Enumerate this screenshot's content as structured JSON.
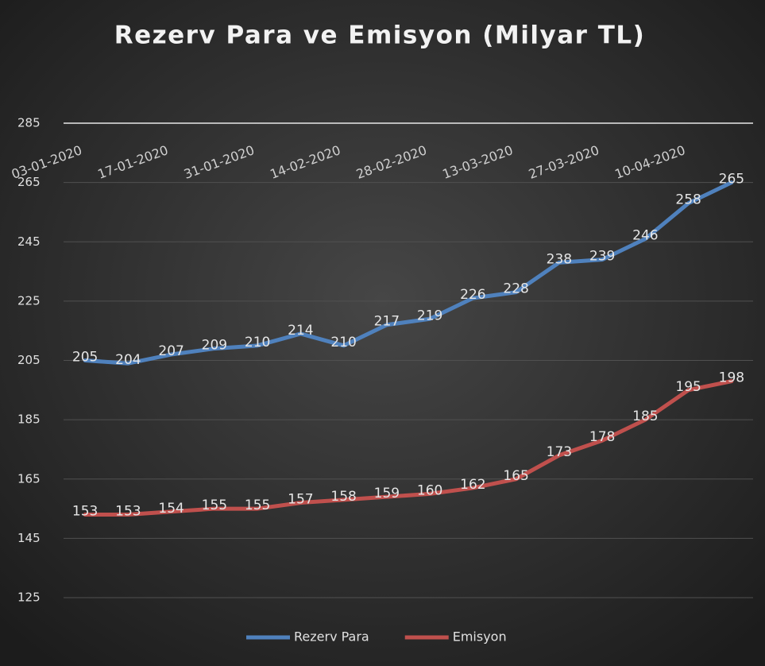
{
  "chart_data": {
    "type": "line",
    "title": "Rezerv Para  ve Emisyon  (Milyar TL)",
    "categories": [
      "03-01-2020",
      null,
      "17-01-2020",
      null,
      "31-01-2020",
      null,
      "14-02-2020",
      null,
      "28-02-2020",
      null,
      "13-03-2020",
      null,
      "27-03-2020",
      null,
      "10-04-2020",
      null
    ],
    "series": [
      {
        "name": "Rezerv Para",
        "color": "#4f81bd",
        "values": [
          205,
          204,
          207,
          209,
          210,
          214,
          210,
          217,
          219,
          226,
          228,
          238,
          239,
          246,
          258,
          265
        ]
      },
      {
        "name": "Emisyon",
        "color": "#c0504d",
        "values": [
          153,
          153,
          154,
          155,
          155,
          157,
          158,
          159,
          160,
          162,
          165,
          173,
          178,
          185,
          195,
          198
        ]
      }
    ],
    "ylim": [
      125,
      285
    ],
    "yticks": [
      125,
      145,
      165,
      185,
      205,
      225,
      245,
      265,
      285
    ],
    "grid": true,
    "legend": "bottom",
    "x_axis_at": "top"
  }
}
